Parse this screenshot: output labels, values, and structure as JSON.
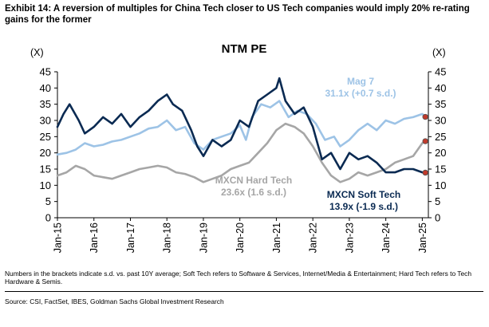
{
  "exhibit": {
    "title": "Exhibit 14: A reversion of multiples for China Tech closer to US Tech companies would imply 20% re-rating gains for the former"
  },
  "chart_data": {
    "type": "line",
    "title": "NTM PE",
    "ylabel_left": "(X)",
    "ylabel_right": "(X)",
    "ylim": [
      0,
      45
    ],
    "yticks": [
      "0",
      "5",
      "10",
      "15",
      "20",
      "25",
      "30",
      "35",
      "40",
      "45"
    ],
    "xlim": [
      "2015-01",
      "2025-03"
    ],
    "xticks": [
      "Jan-15",
      "Jan-16",
      "Jan-17",
      "Jan-18",
      "Jan-19",
      "Jan-20",
      "Jan-21",
      "Jan-22",
      "Jan-23",
      "Jan-24",
      "Jan-25"
    ],
    "legend": "inline-annotations",
    "grid": false,
    "series": [
      {
        "name": "Mag 7",
        "color": "#9dc3e6",
        "x": [
          "2015-01",
          "2015-04",
          "2015-07",
          "2015-10",
          "2016-01",
          "2016-04",
          "2016-07",
          "2016-10",
          "2017-01",
          "2017-04",
          "2017-07",
          "2017-10",
          "2018-01",
          "2018-04",
          "2018-07",
          "2018-10",
          "2019-01",
          "2019-04",
          "2019-07",
          "2019-10",
          "2020-01",
          "2020-03",
          "2020-05",
          "2020-08",
          "2020-11",
          "2021-02",
          "2021-05",
          "2021-08",
          "2021-11",
          "2022-02",
          "2022-05",
          "2022-08",
          "2022-10",
          "2023-01",
          "2023-04",
          "2023-07",
          "2023-10",
          "2024-01",
          "2024-04",
          "2024-07",
          "2024-10",
          "2025-01",
          "2025-02"
        ],
        "values": [
          19.5,
          20,
          21,
          23,
          22,
          22.5,
          23.5,
          24,
          25,
          26,
          27.5,
          28,
          30,
          27,
          28,
          23,
          21,
          24,
          25,
          26,
          28.5,
          24,
          31,
          35,
          34,
          36,
          31,
          33,
          32,
          29,
          24,
          25,
          22,
          24,
          27,
          29,
          27,
          30,
          29,
          30.5,
          31,
          32,
          31.1
        ]
      },
      {
        "name": "MXCN Soft Tech",
        "color": "#0a2a52",
        "x": [
          "2015-01",
          "2015-03",
          "2015-05",
          "2015-08",
          "2015-10",
          "2016-01",
          "2016-04",
          "2016-07",
          "2016-10",
          "2017-01",
          "2017-04",
          "2017-07",
          "2017-10",
          "2018-01",
          "2018-03",
          "2018-06",
          "2018-09",
          "2018-11",
          "2019-01",
          "2019-04",
          "2019-07",
          "2019-10",
          "2020-01",
          "2020-04",
          "2020-07",
          "2020-10",
          "2021-01",
          "2021-02",
          "2021-04",
          "2021-07",
          "2021-10",
          "2022-01",
          "2022-04",
          "2022-07",
          "2022-10",
          "2023-01",
          "2023-04",
          "2023-07",
          "2023-10",
          "2024-01",
          "2024-04",
          "2024-07",
          "2024-10",
          "2025-01",
          "2025-02"
        ],
        "values": [
          28,
          32,
          35,
          30,
          26,
          28,
          31,
          29,
          32,
          28,
          31,
          33,
          36,
          38,
          35,
          33,
          27,
          22,
          19,
          24,
          22,
          24,
          30,
          28,
          36,
          38,
          40,
          43,
          36,
          32,
          34,
          28,
          18,
          20,
          15,
          20,
          18,
          19,
          17,
          14,
          14,
          15,
          15,
          14,
          13.9
        ]
      },
      {
        "name": "MXCN Hard Tech",
        "color": "#a6a6a6",
        "x": [
          "2015-01",
          "2015-04",
          "2015-07",
          "2015-10",
          "2016-01",
          "2016-04",
          "2016-07",
          "2016-10",
          "2017-01",
          "2017-04",
          "2017-07",
          "2017-10",
          "2018-01",
          "2018-04",
          "2018-07",
          "2018-10",
          "2019-01",
          "2019-04",
          "2019-07",
          "2019-10",
          "2020-01",
          "2020-04",
          "2020-07",
          "2020-10",
          "2021-01",
          "2021-04",
          "2021-07",
          "2021-10",
          "2022-01",
          "2022-04",
          "2022-07",
          "2022-10",
          "2023-01",
          "2023-04",
          "2023-07",
          "2023-10",
          "2024-01",
          "2024-04",
          "2024-07",
          "2024-10",
          "2025-01",
          "2025-02"
        ],
        "values": [
          13,
          14,
          16,
          15,
          13,
          12.5,
          12,
          13,
          14,
          15,
          15.5,
          16,
          15.5,
          14,
          13.5,
          12.5,
          11,
          12,
          13,
          15,
          16,
          17,
          20,
          23,
          27,
          29,
          28,
          26,
          22,
          17,
          13,
          11,
          12,
          14,
          13,
          14,
          15,
          17,
          18,
          19,
          23,
          23.6
        ]
      }
    ],
    "annotations": [
      {
        "series": "Mag 7",
        "name": "Mag 7",
        "value": "31.1x (+0.7 s.d.)"
      },
      {
        "series": "MXCN Hard Tech",
        "name": "MXCN Hard Tech",
        "value": "23.6x (1.6 s.d.)"
      },
      {
        "series": "MXCN Soft Tech",
        "name": "MXCN Soft Tech",
        "value": "13.9x (-1.9 s.d.)"
      }
    ]
  },
  "footnote": "Numbers in the brackets indicate s.d. vs. past 10Y average; Soft Tech refers to Software & Services, Internet/Media & Entertainment; Hard Tech refers to Tech Hardware & Semis.",
  "source": "Source: CSI, FactSet, IBES, Goldman Sachs Global Investment Research"
}
